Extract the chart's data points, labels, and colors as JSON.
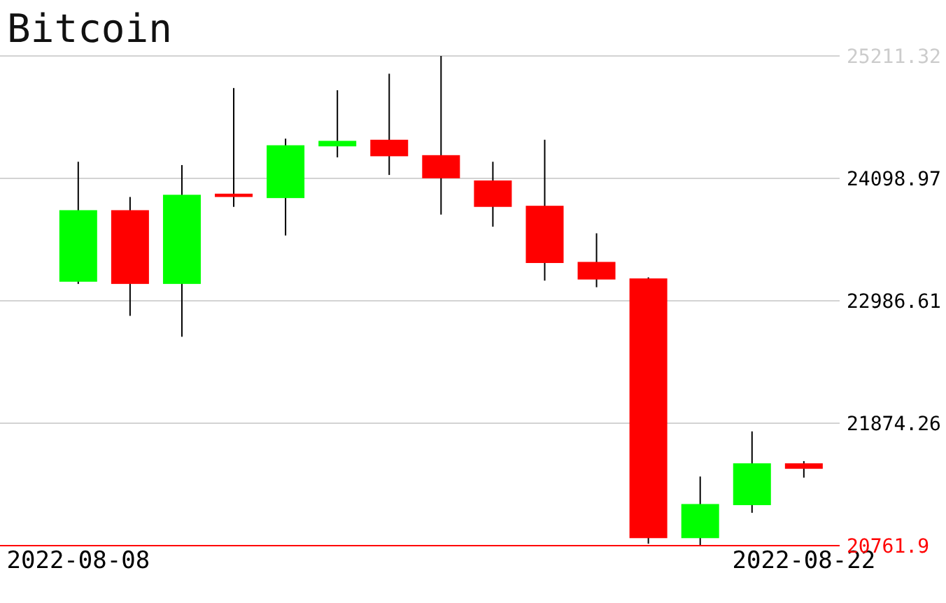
{
  "chart_data": {
    "type": "candlestick",
    "title": "Bitcoin",
    "categories": [
      "2022-08-08",
      null,
      null,
      null,
      null,
      null,
      null,
      null,
      null,
      null,
      null,
      null,
      null,
      null,
      "2022-08-22"
    ],
    "ohlc": [
      [
        23160,
        24250,
        23140,
        23810
      ],
      [
        23810,
        23930,
        22850,
        23140
      ],
      [
        23140,
        24220,
        22660,
        23950
      ],
      [
        23960,
        24920,
        23840,
        23930
      ],
      [
        23920,
        24460,
        23580,
        24400
      ],
      [
        24390,
        24900,
        24290,
        24440
      ],
      [
        24450,
        25050,
        24130,
        24300
      ],
      [
        24310,
        25211.32,
        23770,
        24100
      ],
      [
        24080,
        24250,
        23660,
        23840
      ],
      [
        23850,
        24450,
        23170,
        23330
      ],
      [
        23340,
        23600,
        23110,
        23180
      ],
      [
        23190,
        23200,
        20780,
        20830
      ],
      [
        20830,
        21390,
        20761.9,
        21140
      ],
      [
        21130,
        21800,
        21060,
        21510
      ],
      [
        21510,
        21530,
        21380,
        21460
      ]
    ],
    "colors": [
      "#00ff00",
      "#ff0000",
      "#00ff00",
      "#ff0000",
      "#00ff00",
      "#00ff00",
      "#ff0000",
      "#ff0000",
      "#ff0000",
      "#ff0000",
      "#ff0000",
      "#ff0000",
      "#00ff00",
      "#00ff00",
      "#ff0000"
    ],
    "ylim": [
      20761.9,
      25211.32
    ],
    "yticks": [
      20761.9,
      21874.26,
      22986.61,
      24098.97,
      25211.32
    ],
    "grid": "y"
  }
}
